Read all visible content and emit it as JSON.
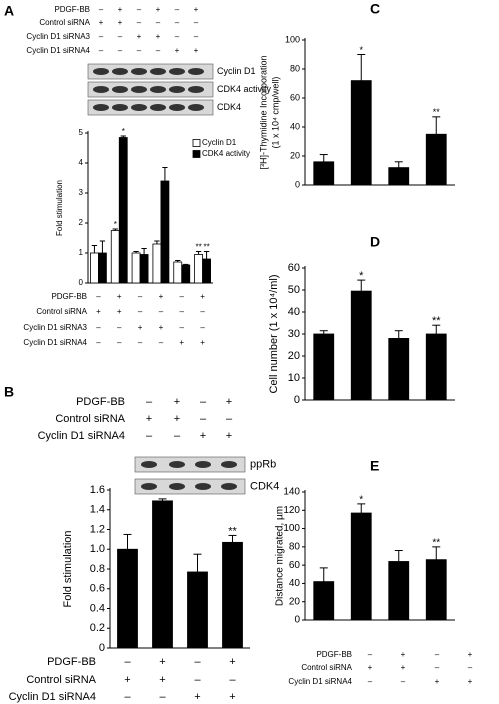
{
  "panels": [
    {
      "letter": "A",
      "conditions_top": [
        {
          "label": "PDGF-BB",
          "signs": [
            "–",
            "+",
            "–",
            "+",
            "–",
            "+"
          ]
        },
        {
          "label": "Control siRNA",
          "signs": [
            "+",
            "+",
            "–",
            "–",
            "–",
            "–"
          ]
        },
        {
          "label": "Cyclin D1 siRNA3",
          "signs": [
            "–",
            "–",
            "+",
            "+",
            "–",
            "–"
          ]
        },
        {
          "label": "Cyclin D1 siRNA4",
          "signs": [
            "–",
            "–",
            "–",
            "–",
            "+",
            "+"
          ]
        }
      ],
      "blots": [
        "Cyclin D1",
        "CDK4 activity",
        "CDK4"
      ],
      "conditions_bottom": [
        {
          "label": "PDGF-BB",
          "signs": [
            "–",
            "+",
            "–",
            "+",
            "–",
            "+"
          ]
        },
        {
          "label": "Control siRNA",
          "signs": [
            "+",
            "+",
            "–",
            "–",
            "–",
            "–"
          ]
        },
        {
          "label": "Cyclin D1 siRNA3",
          "signs": [
            "–",
            "–",
            "+",
            "+",
            "–",
            "–"
          ]
        },
        {
          "label": "Cyclin D1 siRNA4",
          "signs": [
            "–",
            "–",
            "–",
            "–",
            "+",
            "+"
          ]
        }
      ]
    },
    {
      "letter": "B",
      "conditions_top": [
        {
          "label": "PDGF-BB",
          "signs": [
            "–",
            "+",
            "–",
            "+"
          ]
        },
        {
          "label": "Control siRNA",
          "signs": [
            "+",
            "+",
            "–",
            "–"
          ]
        },
        {
          "label": "Cyclin D1 siRNA4",
          "signs": [
            "–",
            "–",
            "+",
            "+"
          ]
        }
      ],
      "blots": [
        "ppRb",
        "CDK4"
      ],
      "conditions_bottom": [
        {
          "label": "PDGF-BB",
          "signs": [
            "–",
            "+",
            "–",
            "+"
          ]
        },
        {
          "label": "Control siRNA",
          "signs": [
            "+",
            "+",
            "–",
            "–"
          ]
        },
        {
          "label": "Cyclin D1 siRNA4",
          "signs": [
            "–",
            "–",
            "+",
            "+"
          ]
        }
      ]
    },
    {
      "letter": "C"
    },
    {
      "letter": "D"
    },
    {
      "letter": "E",
      "conditions_bottom": [
        {
          "label": "PDGF-BB",
          "signs": [
            "–",
            "+",
            "–",
            "+"
          ]
        },
        {
          "label": "Control siRNA",
          "signs": [
            "+",
            "+",
            "–",
            "–"
          ]
        },
        {
          "label": "Cyclin D1 siRNA4",
          "signs": [
            "–",
            "–",
            "+",
            "+"
          ]
        }
      ]
    }
  ],
  "chart_data": [
    {
      "type": "bar",
      "ylabel": [
        "Fold stimulation"
      ],
      "categories": [
        null,
        null,
        null,
        null,
        null,
        null
      ],
      "ylim": [
        0,
        5
      ],
      "yticks": [
        0,
        1,
        2,
        3,
        4,
        5
      ],
      "legend": "upper right",
      "series": [
        {
          "name": "Cyclin D1",
          "color": "#ffffff",
          "values": [
            1.0,
            1.75,
            1.0,
            1.3,
            0.7,
            0.95
          ],
          "errors": [
            0.25,
            0.05,
            0.05,
            0.1,
            0.05,
            0.1
          ],
          "annotations": [
            null,
            "*",
            null,
            null,
            null,
            "**"
          ]
        },
        {
          "name": "CDK4 activity",
          "color": "#000000",
          "values": [
            1.0,
            4.85,
            0.95,
            3.4,
            0.6,
            0.8
          ],
          "errors": [
            0.4,
            0.05,
            0.2,
            0.45,
            0.02,
            0.25
          ],
          "annotations": [
            null,
            "*",
            null,
            null,
            null,
            "**"
          ]
        }
      ]
    },
    {
      "type": "bar",
      "ylabel": [
        "Fold stimulation"
      ],
      "categories": [
        null,
        null,
        null,
        null
      ],
      "ylim": [
        0,
        1.6
      ],
      "yticks": [
        0,
        0.2,
        0.4,
        0.6,
        0.8,
        {
          "value": 1,
          "label": "1.0"
        },
        1.2,
        1.4,
        1.6
      ],
      "series": [
        {
          "color": "#000000",
          "values": [
            1.0,
            1.49,
            0.77,
            1.07
          ],
          "errors": [
            0.15,
            0.02,
            0.18,
            0.07
          ],
          "annotations": [
            null,
            "*",
            null,
            "**"
          ]
        }
      ]
    },
    {
      "type": "bar",
      "ylabel": [
        "[³H]-Thymidine Incorporation",
        "(1 x 10⁴ cmp/well)"
      ],
      "categories": [
        null,
        null,
        null,
        null
      ],
      "ylim": [
        0,
        100
      ],
      "yticks": [
        0,
        20,
        40,
        60,
        80,
        100
      ],
      "series": [
        {
          "color": "#000000",
          "values": [
            16,
            72,
            12,
            35
          ],
          "errors": [
            5,
            18,
            4,
            12
          ],
          "annotations": [
            null,
            "*",
            null,
            "**"
          ]
        }
      ]
    },
    {
      "type": "bar",
      "ylabel": [
        "Cell number (1 x 10⁴/ml)"
      ],
      "categories": [
        null,
        null,
        null,
        null
      ],
      "ylim": [
        0,
        60
      ],
      "yticks": [
        0,
        10,
        20,
        30,
        40,
        50,
        60
      ],
      "series": [
        {
          "color": "#000000",
          "values": [
            30,
            49.5,
            28,
            30
          ],
          "errors": [
            1.5,
            5,
            3.5,
            4
          ],
          "annotations": [
            null,
            "*",
            null,
            "**"
          ]
        }
      ]
    },
    {
      "type": "bar",
      "ylabel": [
        "Distance migrated, µm"
      ],
      "categories": [
        null,
        null,
        null,
        null
      ],
      "ylim": [
        0,
        140
      ],
      "yticks": [
        0,
        20,
        40,
        60,
        80,
        100,
        120,
        140
      ],
      "series": [
        {
          "color": "#000000",
          "values": [
            42,
            117,
            64,
            66
          ],
          "errors": [
            15,
            10,
            12,
            14
          ],
          "annotations": [
            null,
            "*",
            null,
            "**"
          ]
        }
      ]
    }
  ]
}
